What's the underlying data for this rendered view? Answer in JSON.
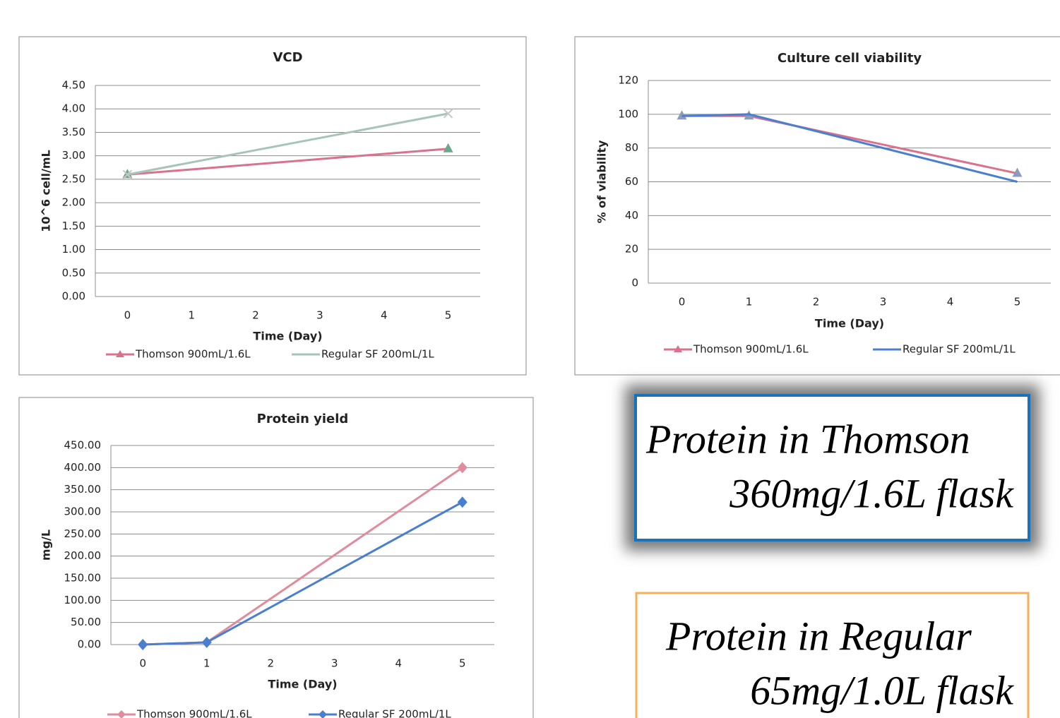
{
  "chart_data": [
    {
      "type": "line",
      "title": "VCD",
      "x_label": "Time (Day)",
      "y_label": "10^6 cell/mL",
      "x": [
        0,
        5
      ],
      "xlim": [
        -0.5,
        5.5
      ],
      "xticks": [
        0,
        1,
        2,
        3,
        4,
        5
      ],
      "ylim": [
        0,
        4.5
      ],
      "yticks": [
        {
          "value": 0,
          "label": "0.00"
        },
        {
          "value": 0.5,
          "label": "0.50"
        },
        {
          "value": 1,
          "label": "1.00"
        },
        {
          "value": 1.5,
          "label": "1.50"
        },
        {
          "value": 2,
          "label": "2.00"
        },
        {
          "value": 2.5,
          "label": "2.50"
        },
        {
          "value": 3,
          "label": "3.00"
        },
        {
          "value": 3.5,
          "label": "3.50"
        },
        {
          "value": 4,
          "label": "4.00"
        },
        {
          "value": 4.5,
          "label": "4.50"
        }
      ],
      "grid": true,
      "series": [
        {
          "name": "Thomson 900mL/1.6L",
          "color": "#d9728c",
          "marker": "triangle",
          "marker_color": "#6aa889",
          "values": [
            2.6,
            3.15
          ]
        },
        {
          "name": "Regular SF 200mL/1L",
          "color": "#a8c4b8",
          "marker": "x",
          "marker_color": "#c8c8c8",
          "values": [
            2.6,
            3.9
          ]
        }
      ]
    },
    {
      "type": "line",
      "title": "Culture cell viability",
      "x_label": "Time (Day)",
      "y_label": "% of viability",
      "x": [
        0,
        1,
        5
      ],
      "xlim": [
        -0.5,
        5.5
      ],
      "xticks": [
        0,
        1,
        2,
        3,
        4,
        5
      ],
      "ylim": [
        0,
        120
      ],
      "yticks": [
        0,
        20,
        40,
        60,
        80,
        100,
        120
      ],
      "grid": true,
      "series": [
        {
          "name": "Thomson 900mL/1.6L",
          "color": "#d9728c",
          "marker": "triangle",
          "marker_color": "#8a9bbd",
          "values": [
            99,
            99,
            65
          ]
        },
        {
          "name": "Regular SF 200mL/1L",
          "color": "#4a7fd0",
          "marker": "none",
          "marker_color": "#4a7fd0",
          "values": [
            99,
            100,
            60
          ]
        }
      ]
    },
    {
      "type": "line",
      "title": "Protein yield",
      "x_label": "Time (Day)",
      "y_label": "mg/L",
      "x": [
        0,
        1,
        5
      ],
      "xlim": [
        -0.5,
        5.5
      ],
      "xticks": [
        0,
        1,
        2,
        3,
        4,
        5
      ],
      "ylim": [
        0,
        450
      ],
      "yticks": [
        {
          "value": 0,
          "label": "0.00"
        },
        {
          "value": 50,
          "label": "50.00"
        },
        {
          "value": 100,
          "label": "100.00"
        },
        {
          "value": 150,
          "label": "150.00"
        },
        {
          "value": 200,
          "label": "200.00"
        },
        {
          "value": 250,
          "label": "250.00"
        },
        {
          "value": 300,
          "label": "300.00"
        },
        {
          "value": 350,
          "label": "350.00"
        },
        {
          "value": 400,
          "label": "400.00"
        },
        {
          "value": 450,
          "label": "450.00"
        }
      ],
      "grid": true,
      "series": [
        {
          "name": "Thomson 900mL/1.6L",
          "color": "#e08c9c",
          "marker": "diamond",
          "marker_color": "#e08c9c",
          "values": [
            0,
            5,
            400
          ]
        },
        {
          "name": "Regular SF 200mL/1L",
          "color": "#4a7fd0",
          "marker": "diamond",
          "marker_color": "#4a7fd0",
          "values": [
            0,
            5,
            322
          ]
        }
      ]
    }
  ],
  "callouts": [
    {
      "lines": [
        "Protein in Thomson",
        "360mg/1.6L flask"
      ]
    },
    {
      "lines": [
        "Protein in Regular",
        "65mg/1.0L flask"
      ]
    }
  ]
}
